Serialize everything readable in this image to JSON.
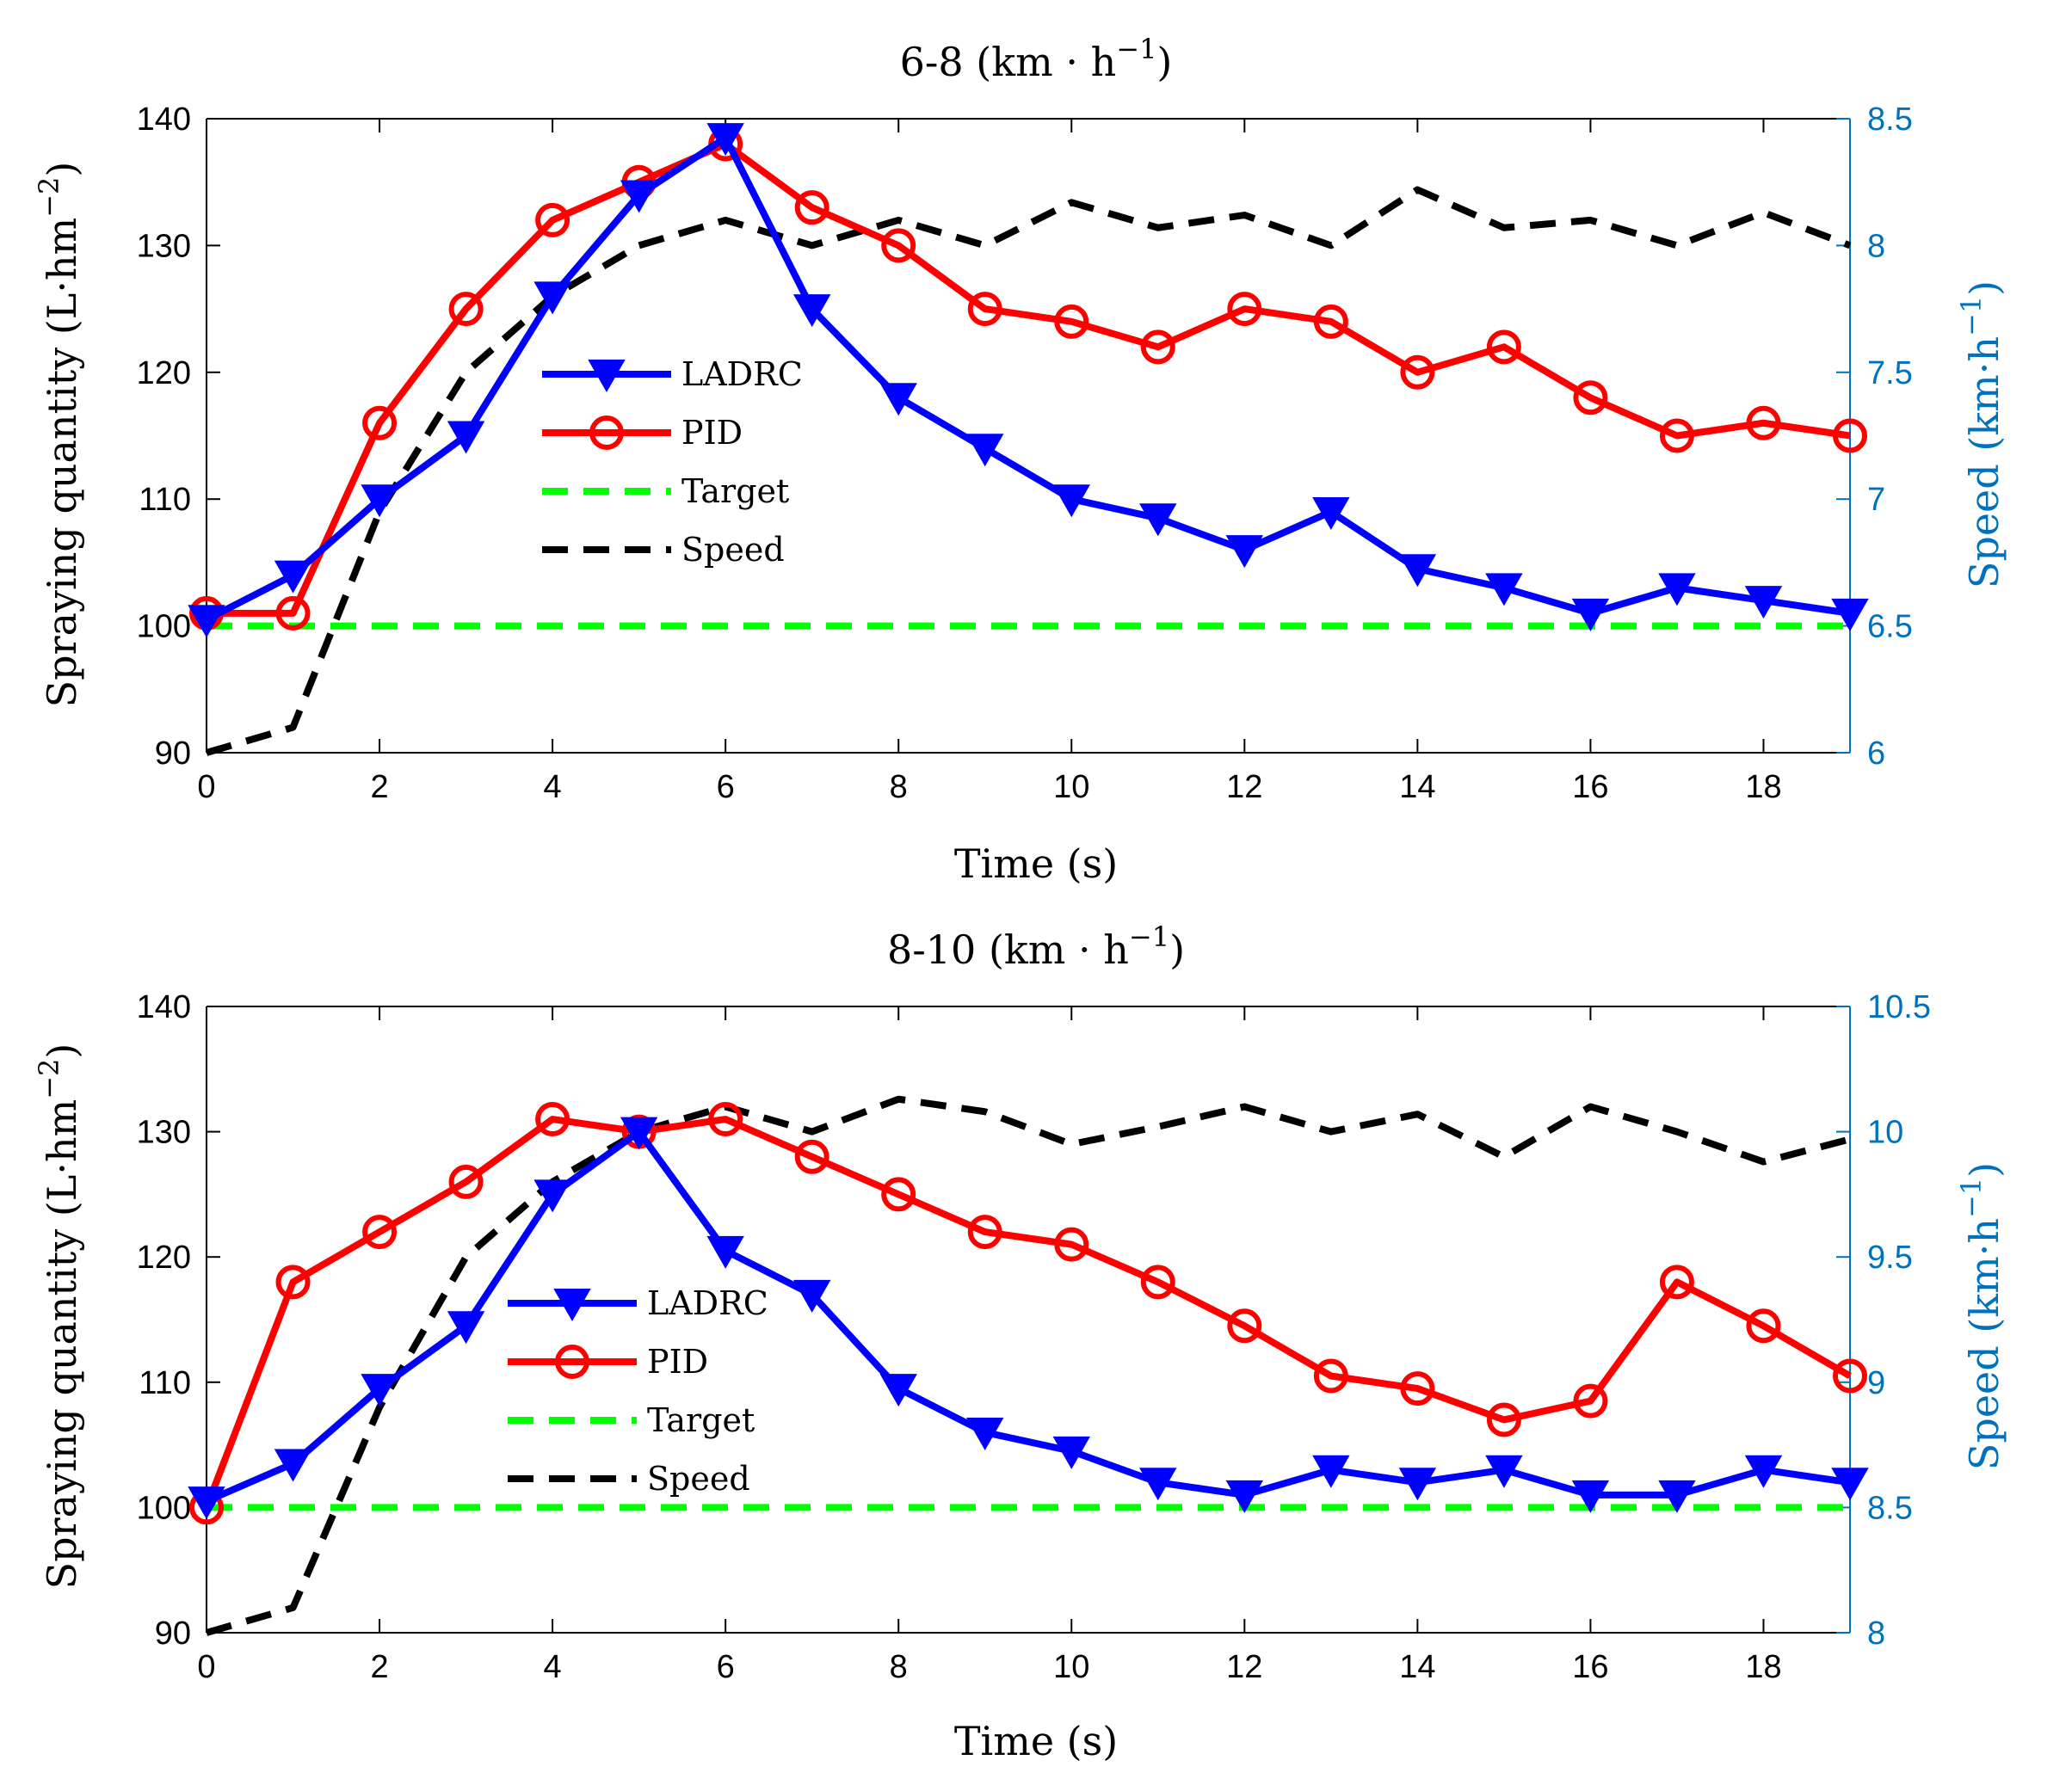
{
  "chart_data": [
    {
      "type": "line",
      "title": "6-8 (km · h",
      "title_sup": "−1",
      "title_close": ")",
      "xlabel": "Time (s)",
      "ylabel": "Spraying quantity (L·hm",
      "ylabel_sup": "−2",
      "ylabel_close": ")",
      "y2label": "Speed (km·h",
      "y2label_sup": "−1",
      "y2label_close": ")",
      "xlim": [
        0,
        19
      ],
      "ylim": [
        90,
        140
      ],
      "y2lim": [
        6,
        8.5
      ],
      "xticks": [
        0,
        2,
        4,
        6,
        8,
        10,
        12,
        14,
        16,
        18
      ],
      "yticks": [
        90,
        100,
        110,
        120,
        130,
        140
      ],
      "y2ticks": [
        "6",
        "6.5",
        "7",
        "7.5",
        "8",
        "8.5"
      ],
      "x": [
        0,
        1,
        2,
        3,
        4,
        5,
        6,
        7,
        8,
        9,
        10,
        11,
        12,
        13,
        14,
        15,
        16,
        17,
        18,
        19
      ],
      "series": [
        {
          "name": "LADRC",
          "axis": "left",
          "color": "#0000FF",
          "marker": "triangle-down",
          "dash": "solid",
          "values": [
            100.5,
            104,
            110,
            115,
            126,
            134,
            138.5,
            125,
            118,
            114,
            110,
            108.5,
            106,
            109,
            104.5,
            103,
            101,
            103,
            102,
            101
          ]
        },
        {
          "name": "PID",
          "axis": "left",
          "color": "#FF0000",
          "marker": "circle",
          "dash": "solid",
          "values": [
            101,
            101,
            116,
            125,
            132,
            135,
            138,
            133,
            130,
            125,
            124,
            122,
            125,
            124,
            120,
            122,
            118,
            115,
            116,
            115
          ]
        },
        {
          "name": "Target",
          "axis": "left",
          "color": "#00FF00",
          "marker": "none",
          "dash": "dashed",
          "values": [
            100,
            100,
            100,
            100,
            100,
            100,
            100,
            100,
            100,
            100,
            100,
            100,
            100,
            100,
            100,
            100,
            100,
            100,
            100,
            100
          ]
        },
        {
          "name": "Speed",
          "axis": "right",
          "color": "#000000",
          "marker": "none",
          "dash": "dashed",
          "values": [
            6,
            6.1,
            6.95,
            7.5,
            7.8,
            8,
            8.1,
            8,
            8.1,
            8,
            8.17,
            8.07,
            8.12,
            8,
            8.22,
            8.07,
            8.1,
            8,
            8.13,
            8
          ]
        }
      ],
      "legend_position": "center-left"
    },
    {
      "type": "line",
      "title": "8-10 (km · h",
      "title_sup": "−1",
      "title_close": ")",
      "xlabel": "Time (s)",
      "ylabel": "Spraying quantity (L·hm",
      "ylabel_sup": "−2",
      "ylabel_close": ")",
      "y2label": "Speed (km·h",
      "y2label_sup": "−1",
      "y2label_close": ")",
      "xlim": [
        0,
        19
      ],
      "ylim": [
        90,
        140
      ],
      "y2lim": [
        8,
        10.5
      ],
      "xticks": [
        0,
        2,
        4,
        6,
        8,
        10,
        12,
        14,
        16,
        18
      ],
      "yticks": [
        90,
        100,
        110,
        120,
        130,
        140
      ],
      "y2ticks": [
        "8",
        "8.5",
        "9",
        "9.5",
        "10",
        "10.5"
      ],
      "x": [
        0,
        1,
        2,
        3,
        4,
        5,
        6,
        7,
        8,
        9,
        10,
        11,
        12,
        13,
        14,
        15,
        16,
        17,
        18,
        19
      ],
      "series": [
        {
          "name": "LADRC",
          "axis": "left",
          "color": "#0000FF",
          "marker": "triangle-down",
          "dash": "solid",
          "values": [
            100.5,
            103.5,
            109.5,
            114.5,
            125,
            130,
            120.5,
            117,
            109.5,
            106,
            104.5,
            102,
            101,
            103,
            102,
            103,
            101,
            101,
            103,
            102
          ]
        },
        {
          "name": "PID",
          "axis": "left",
          "color": "#FF0000",
          "marker": "circle",
          "dash": "solid",
          "values": [
            100,
            118,
            122,
            126,
            131,
            130,
            131,
            128,
            125,
            122,
            121,
            118,
            114.5,
            110.5,
            109.5,
            107,
            108.5,
            118,
            114.5,
            110.5
          ]
        },
        {
          "name": "Target",
          "axis": "left",
          "color": "#00FF00",
          "marker": "none",
          "dash": "dashed",
          "values": [
            100,
            100,
            100,
            100,
            100,
            100,
            100,
            100,
            100,
            100,
            100,
            100,
            100,
            100,
            100,
            100,
            100,
            100,
            100,
            100
          ]
        },
        {
          "name": "Speed",
          "axis": "right",
          "color": "#000000",
          "marker": "none",
          "dash": "dashed",
          "values": [
            8,
            8.1,
            8.9,
            9.5,
            9.8,
            10,
            10.1,
            10,
            10.13,
            10.08,
            9.95,
            10.02,
            10.1,
            10,
            10.07,
            9.9,
            10.1,
            10,
            9.88,
            9.97
          ]
        }
      ],
      "legend_position": "center-left"
    }
  ]
}
